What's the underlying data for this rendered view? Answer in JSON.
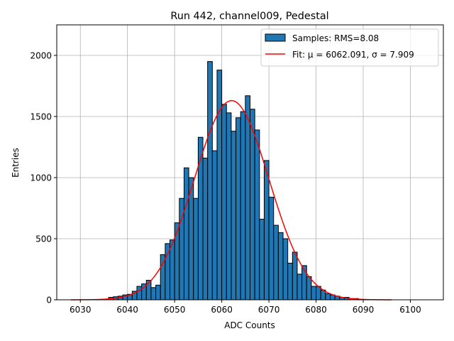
{
  "chart_data": {
    "type": "bar",
    "title": "Run 442, channel009, Pedestal",
    "xlabel": "ADC Counts",
    "ylabel": "Entries",
    "xlim": [
      6025,
      6107
    ],
    "ylim": [
      0,
      2250
    ],
    "xticks": [
      6030,
      6040,
      6050,
      6060,
      6070,
      6080,
      6090,
      6100
    ],
    "yticks": [
      0,
      500,
      1000,
      1500,
      2000
    ],
    "grid": true,
    "legend_position": "top-right",
    "bin_width": 1,
    "histogram": {
      "name": "Samples: RMS=8.08",
      "color": "#1f77b4",
      "edgecolor": "#000000",
      "bins_left": [
        6036,
        6037,
        6038,
        6039,
        6040,
        6041,
        6042,
        6043,
        6044,
        6045,
        6046,
        6047,
        6048,
        6049,
        6050,
        6051,
        6052,
        6053,
        6054,
        6055,
        6056,
        6057,
        6058,
        6059,
        6060,
        6061,
        6062,
        6063,
        6064,
        6065,
        6066,
        6067,
        6068,
        6069,
        6070,
        6071,
        6072,
        6073,
        6074,
        6075,
        6076,
        6077,
        6078,
        6079,
        6080,
        6081,
        6082,
        6083,
        6084,
        6085,
        6086,
        6087,
        6088
      ],
      "counts": [
        20,
        25,
        30,
        40,
        45,
        70,
        110,
        130,
        160,
        100,
        120,
        370,
        460,
        490,
        630,
        830,
        1080,
        1000,
        830,
        1330,
        1160,
        1950,
        1220,
        1880,
        1600,
        1530,
        1380,
        1490,
        1540,
        1670,
        1560,
        1390,
        660,
        1140,
        840,
        610,
        550,
        500,
        300,
        390,
        210,
        280,
        190,
        110,
        110,
        80,
        50,
        40,
        30,
        20,
        20,
        10,
        10
      ]
    },
    "fit": {
      "name": "Fit: μ = 6062.091, σ = 7.909",
      "color": "#ff0000",
      "mu": 6062.091,
      "sigma": 7.909,
      "amplitude": 1630,
      "x_range": [
        6028,
        6096
      ]
    }
  }
}
